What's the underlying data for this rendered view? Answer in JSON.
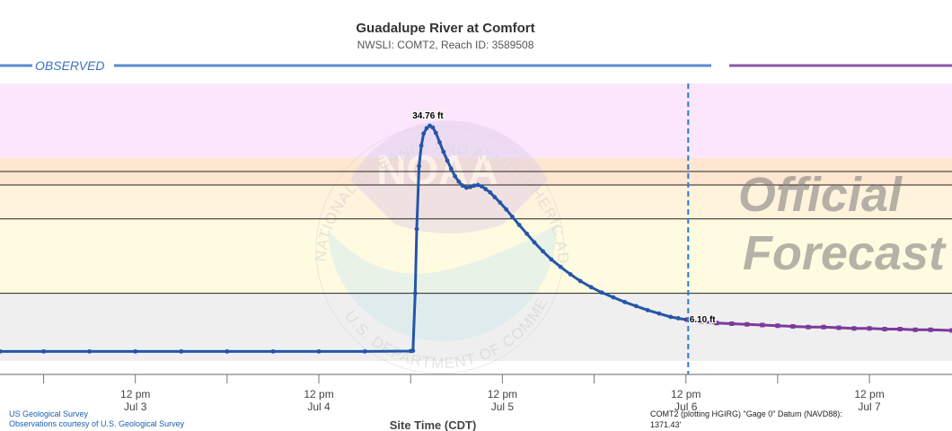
{
  "chart_data": {
    "type": "line",
    "title": "Guadalupe River at Comfort",
    "subtitle": "NWSLI: COMT2, Reach ID: 3589508",
    "xlabel": "Site Time (CDT)",
    "ylabel": "",
    "x_unit": "hours",
    "xlim": [
      -17.7,
      106.8
    ],
    "ylim": [
      -2.0,
      41.0
    ],
    "x_ticks": [
      {
        "x": 0,
        "line1": "12 pm",
        "line2": "Jul 3"
      },
      {
        "x": 24,
        "line1": "12 pm",
        "line2": "Jul 4"
      },
      {
        "x": 48,
        "line1": "12 pm",
        "line2": "Jul 5"
      },
      {
        "x": 72,
        "line1": "12 pm",
        "line2": "Jul 6"
      },
      {
        "x": 96,
        "line1": "12 pm",
        "line2": "Jul 7"
      }
    ],
    "x_minor_ticks": [
      -12,
      12,
      36,
      60,
      84
    ],
    "bands": [
      {
        "from": 0.0,
        "to": 10.0,
        "color": "#efefef"
      },
      {
        "from": 10.0,
        "to": 21.0,
        "color": "#fffbe0"
      },
      {
        "from": 21.0,
        "to": 26.0,
        "color": "#fff3dc"
      },
      {
        "from": 26.0,
        "to": 30.0,
        "color": "#ffe6d0"
      },
      {
        "from": 30.0,
        "to": 41.0,
        "color": "#fbe6fb"
      }
    ],
    "threshold_lines": [
      10.0,
      21.0,
      26.0,
      28.0
    ],
    "now_x": 72.3,
    "series": [
      {
        "name": "OBSERVED",
        "color": "#2356a8",
        "points": [
          [
            -17.7,
            1.4
          ],
          [
            -12,
            1.4
          ],
          [
            -6,
            1.4
          ],
          [
            0,
            1.4
          ],
          [
            6,
            1.4
          ],
          [
            12,
            1.4
          ],
          [
            18,
            1.4
          ],
          [
            24,
            1.4
          ],
          [
            30,
            1.4
          ],
          [
            36,
            1.45
          ],
          [
            36.3,
            1.5
          ],
          [
            36.6,
            10.0
          ],
          [
            36.8,
            19.5
          ],
          [
            37.1,
            28.8
          ],
          [
            37.4,
            31.8
          ],
          [
            37.7,
            33.6
          ],
          [
            38.1,
            34.4
          ],
          [
            38.5,
            34.76
          ],
          [
            38.9,
            34.5
          ],
          [
            39.3,
            33.7
          ],
          [
            39.8,
            32.3
          ],
          [
            40.3,
            30.9
          ],
          [
            40.8,
            29.6
          ],
          [
            41.3,
            28.4
          ],
          [
            41.8,
            27.3
          ],
          [
            42.3,
            26.5
          ],
          [
            42.8,
            25.9
          ],
          [
            43.3,
            25.6
          ],
          [
            43.8,
            25.7
          ],
          [
            44.3,
            25.9
          ],
          [
            44.8,
            26.0
          ],
          [
            45.3,
            25.8
          ],
          [
            45.8,
            25.4
          ],
          [
            46.4,
            24.9
          ],
          [
            47.0,
            24.2
          ],
          [
            47.7,
            23.4
          ],
          [
            48.5,
            22.4
          ],
          [
            49.3,
            21.3
          ],
          [
            50.2,
            20.1
          ],
          [
            51.2,
            18.8
          ],
          [
            52.2,
            17.5
          ],
          [
            53.3,
            16.2
          ],
          [
            54.4,
            15.0
          ],
          [
            55.6,
            13.9
          ],
          [
            56.9,
            12.8
          ],
          [
            58.2,
            11.8
          ],
          [
            59.6,
            10.9
          ],
          [
            61.0,
            10.1
          ],
          [
            62.5,
            9.4
          ],
          [
            64.0,
            8.7
          ],
          [
            65.5,
            8.1
          ],
          [
            67.0,
            7.5
          ],
          [
            68.5,
            7.0
          ],
          [
            70.0,
            6.5
          ],
          [
            71.0,
            6.3
          ],
          [
            72.0,
            6.1
          ]
        ]
      },
      {
        "name": "Forecast",
        "color": "#7b3b9a",
        "points": [
          [
            72.3,
            6.1
          ],
          [
            74,
            5.8
          ],
          [
            76,
            5.6
          ],
          [
            78,
            5.5
          ],
          [
            80,
            5.4
          ],
          [
            82,
            5.3
          ],
          [
            84,
            5.2
          ],
          [
            86,
            5.1
          ],
          [
            88,
            5.0
          ],
          [
            90,
            5.0
          ],
          [
            92,
            4.9
          ],
          [
            94,
            4.8
          ],
          [
            96,
            4.8
          ],
          [
            98,
            4.7
          ],
          [
            100,
            4.7
          ],
          [
            102,
            4.6
          ],
          [
            104,
            4.6
          ],
          [
            106.8,
            4.5
          ]
        ]
      }
    ],
    "annotations": [
      {
        "x": 38.5,
        "y": 34.76,
        "text": "34.76 ft"
      },
      {
        "x": 72.0,
        "y": 6.1,
        "text": "6.10 ft"
      }
    ],
    "section_labels": {
      "observed": "OBSERVED"
    },
    "watermark": {
      "line1": "Official",
      "line2": "Forecast",
      "seal_text": "NATIONAL OCEANIC AND ATMOSPHERIC ADMINISTRATION · U.S. DEPARTMENT OF COMMERCE",
      "seal_logo": "NOAA"
    },
    "credits": {
      "line1": "US Geological Survey",
      "line2": "Observations courtesy of U.S. Geological Survey",
      "datum_line1": "COMT2 (plotting HGIRG) \"Gage 0\" Datum (NAVD88):",
      "datum_line2": "1371.43'"
    },
    "grid": true,
    "legend": "none"
  }
}
